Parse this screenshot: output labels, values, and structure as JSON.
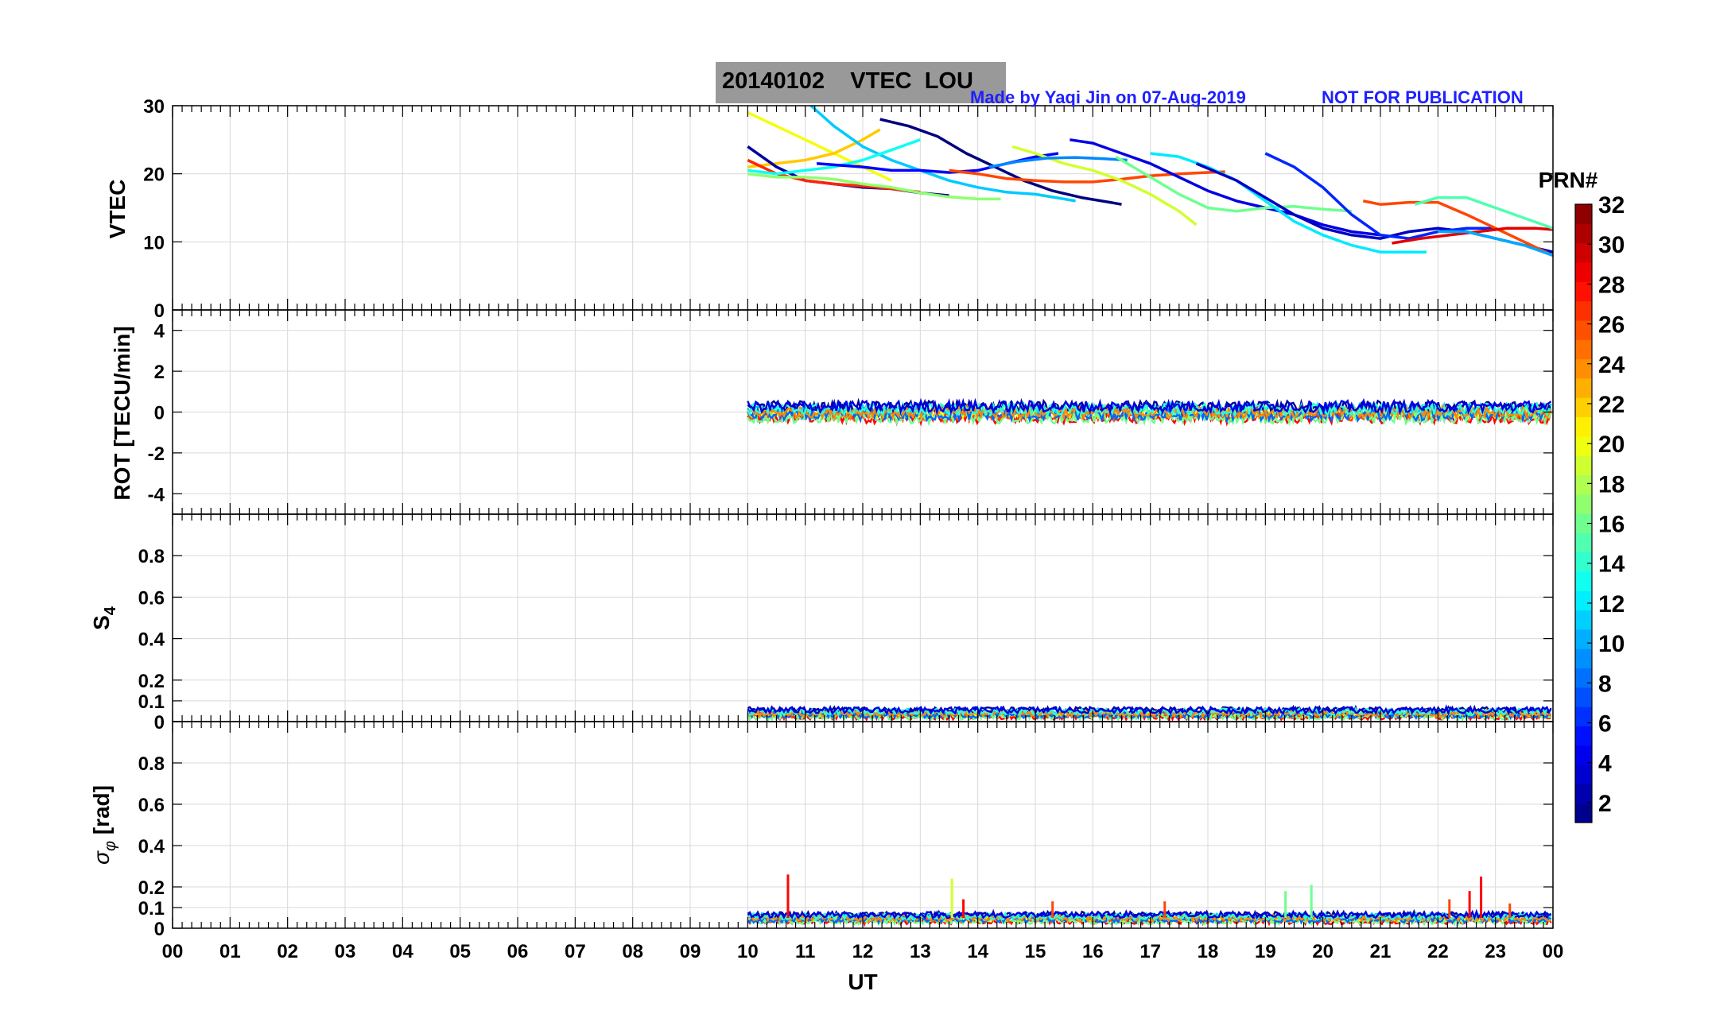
{
  "title": "20140102    VTEC  LOU",
  "credit_left": "Made by Yaqi Jin on 07-Aug-2019",
  "credit_right": "NOT FOR PUBLICATION",
  "xlabel": "UT",
  "x_ticks": [
    "00",
    "01",
    "02",
    "03",
    "04",
    "05",
    "06",
    "07",
    "08",
    "09",
    "10",
    "11",
    "12",
    "13",
    "14",
    "15",
    "16",
    "17",
    "18",
    "19",
    "20",
    "21",
    "22",
    "23",
    "00"
  ],
  "colorbar": {
    "label": "PRN#",
    "range": [
      1,
      32
    ],
    "tick_values": [
      2,
      4,
      6,
      8,
      10,
      12,
      14,
      16,
      18,
      20,
      22,
      24,
      26,
      28,
      30,
      32
    ],
    "tick_labels": [
      "2",
      "4",
      "6",
      "8",
      "10",
      "12",
      "14",
      "16",
      "18",
      "20",
      "22",
      "24",
      "26",
      "28",
      "30",
      "32"
    ]
  },
  "colors": {
    "credit": "#1f1fff",
    "grid": "#d9d9d9",
    "title_bg": "#999999"
  },
  "chart_data": [
    {
      "type": "line",
      "panel": "VTEC",
      "ylabel": "VTEC",
      "xlim": [
        0,
        24
      ],
      "ylim": [
        0,
        30
      ],
      "yticks": [
        0,
        10,
        20,
        30
      ],
      "ytick_labels": [
        "0",
        "10",
        "20",
        "30"
      ],
      "series": [
        {
          "name": "PRN 20",
          "prn": 20,
          "x": [
            10.0,
            10.5,
            11.0,
            11.5,
            12.0,
            12.5
          ],
          "y": [
            29,
            27,
            25,
            23,
            21,
            19
          ]
        },
        {
          "name": "PRN 22",
          "prn": 22,
          "x": [
            10.0,
            10.5,
            11.0,
            11.5,
            12.0,
            12.3
          ],
          "y": [
            21,
            21.5,
            22,
            23,
            25,
            26.5
          ]
        },
        {
          "name": "PRN 2",
          "prn": 2,
          "x": [
            10.0,
            10.5,
            11.0,
            11.5,
            12.0,
            12.5,
            13.0,
            13.5
          ],
          "y": [
            24,
            21,
            19,
            18.5,
            18,
            17.8,
            17.2,
            16.8
          ]
        },
        {
          "name": "PRN 27",
          "prn": 27,
          "x": [
            10.0,
            10.5,
            11.0,
            11.5,
            12.0,
            12.5,
            13.0
          ],
          "y": [
            22,
            20,
            19,
            18.5,
            18.2,
            17.8,
            17.3
          ]
        },
        {
          "name": "PRN 11",
          "prn": 11,
          "x": [
            11.1,
            11.5,
            12.0,
            12.5,
            13.0,
            13.5,
            14.0,
            14.5,
            15.0,
            15.5,
            15.7
          ],
          "y": [
            30,
            27,
            24,
            22,
            20.5,
            19,
            18,
            17.3,
            17,
            16.3,
            16
          ]
        },
        {
          "name": "PRN 13",
          "prn": 13,
          "x": [
            10.0,
            10.5,
            11.0,
            11.5,
            12.0,
            12.5,
            13.0
          ],
          "y": [
            20.5,
            20,
            20.5,
            21,
            22,
            23.5,
            25
          ]
        },
        {
          "name": "PRN 17",
          "prn": 17,
          "x": [
            10.0,
            10.5,
            11.0,
            11.5,
            12.0,
            12.5,
            13.0,
            13.5,
            14.0,
            14.4
          ],
          "y": [
            20,
            19.5,
            19.5,
            19.2,
            18.5,
            18,
            17.2,
            16.6,
            16.3,
            16.3
          ]
        },
        {
          "name": "PRN 5",
          "prn": 5,
          "x": [
            11.2,
            12.0,
            12.5,
            13.0,
            13.5,
            14.0,
            14.5,
            15.0,
            15.4
          ],
          "y": [
            21.5,
            21,
            20.5,
            20.5,
            20.2,
            20.5,
            21.5,
            22.5,
            23
          ]
        },
        {
          "name": "PRN 1",
          "prn": 1,
          "x": [
            12.3,
            12.8,
            13.3,
            13.8,
            14.3,
            14.8,
            15.3,
            15.8,
            16.3,
            16.5
          ],
          "y": [
            28,
            27,
            25.5,
            23,
            21,
            19,
            17.5,
            16.5,
            15.8,
            15.5
          ]
        },
        {
          "name": "PRN 26",
          "prn": 26,
          "x": [
            13.5,
            14.0,
            14.5,
            15.0,
            15.5,
            16.0,
            16.5,
            17.0,
            17.5,
            18.0,
            18.3
          ],
          "y": [
            20.5,
            20,
            19.3,
            19,
            18.8,
            18.8,
            19.2,
            19.7,
            20,
            20.2,
            20.3
          ]
        },
        {
          "name": "PRN 19",
          "prn": 19,
          "x": [
            14.6,
            15.0,
            15.5,
            16.0,
            16.5,
            17.0,
            17.5,
            17.8
          ],
          "y": [
            24,
            23,
            21.5,
            20.5,
            19,
            17,
            14.5,
            12.5
          ]
        },
        {
          "name": "PRN 9",
          "prn": 9,
          "x": [
            14.2,
            14.7,
            15.2,
            15.7,
            16.2,
            16.6
          ],
          "y": [
            21,
            21.8,
            22.3,
            22.4,
            22.2,
            22
          ]
        },
        {
          "name": "PRN 4",
          "prn": 4,
          "x": [
            15.6,
            16.0,
            16.5,
            17.0,
            17.5,
            18.0,
            18.5,
            19.0,
            19.5,
            20.0,
            20.5,
            21.0
          ],
          "y": [
            25,
            24.5,
            23,
            21.5,
            19.5,
            17.5,
            16,
            15,
            14,
            12.5,
            11.5,
            11
          ]
        },
        {
          "name": "PRN 16",
          "prn": 16,
          "x": [
            16.4,
            17.0,
            17.5,
            18.0,
            18.5,
            19.0,
            19.5,
            20.0,
            20.5
          ],
          "y": [
            22.5,
            19.5,
            17,
            15,
            14.5,
            15,
            15.2,
            14.8,
            14.5
          ]
        },
        {
          "name": "PRN 12",
          "prn": 12,
          "x": [
            17.0,
            17.5,
            18.0,
            18.5,
            19.0,
            19.5,
            20.0,
            20.5,
            21.0,
            21.5,
            21.8
          ],
          "y": [
            23,
            22.5,
            21,
            19,
            16,
            13,
            11,
            9.5,
            8.5,
            8.5,
            8.5
          ]
        },
        {
          "name": "PRN 3",
          "prn": 3,
          "x": [
            17.8,
            18.5,
            19.0,
            19.5,
            20.0,
            20.5,
            21.0,
            21.5,
            22.0,
            22.5,
            23.0,
            23.5,
            24.0
          ],
          "y": [
            21.5,
            19,
            16.5,
            14,
            12,
            11,
            10.5,
            11.5,
            12,
            11.5,
            10.5,
            9.5,
            8.5
          ]
        },
        {
          "name": "PRN 6",
          "prn": 6,
          "x": [
            19.0,
            19.5,
            20.0,
            20.5,
            21.0,
            21.5,
            22.0,
            22.5,
            23.0
          ],
          "y": [
            23,
            21,
            18,
            14,
            11,
            10.5,
            11.5,
            12,
            12
          ]
        },
        {
          "name": "PRN 26b",
          "prn": 26,
          "x": [
            20.7,
            21.0,
            21.5,
            22.0,
            22.5,
            23.0,
            23.5,
            24.0
          ],
          "y": [
            16,
            15.5,
            15.8,
            15.8,
            14,
            12,
            10,
            8
          ]
        },
        {
          "name": "PRN 29",
          "prn": 29,
          "x": [
            21.2,
            21.7,
            22.2,
            22.7,
            23.2,
            23.7,
            24.0
          ],
          "y": [
            9.8,
            10.5,
            11,
            11.5,
            12,
            12,
            11.8
          ]
        },
        {
          "name": "PRN 15",
          "prn": 15,
          "x": [
            21.6,
            22.0,
            22.5,
            23.0,
            23.5,
            24.0
          ],
          "y": [
            15.5,
            16.5,
            16.5,
            15,
            13.5,
            12
          ]
        },
        {
          "name": "PRN 10",
          "prn": 10,
          "x": [
            22.0,
            22.5,
            23.0,
            23.5,
            24.0
          ],
          "y": [
            11.5,
            11.5,
            10.5,
            9.5,
            8
          ]
        }
      ]
    },
    {
      "type": "line",
      "panel": "ROT",
      "ylabel": "ROT [TECU/min]",
      "xlim": [
        0,
        24
      ],
      "ylim": [
        -5,
        5
      ],
      "yticks": [
        -4,
        -2,
        0,
        2,
        4
      ],
      "ytick_labels": [
        "-4",
        "-2",
        "0",
        "2",
        "4"
      ],
      "data_range": [
        10.0,
        24.0
      ],
      "typical_values": [
        -0.6,
        0.7
      ],
      "base_value": 0
    },
    {
      "type": "line",
      "panel": "S4",
      "ylabel": "S4",
      "xlim": [
        0,
        24
      ],
      "ylim": [
        0,
        1
      ],
      "yticks": [
        0,
        0.1,
        0.2,
        0.4,
        0.6,
        0.8
      ],
      "ytick_labels": [
        "0",
        "0.1",
        "0.2",
        "0.4",
        "0.6",
        "0.8"
      ],
      "data_range": [
        10.0,
        24.0
      ],
      "base_value": 0.04,
      "typical_max": 0.1
    },
    {
      "type": "line",
      "panel": "SigmaPhi",
      "ylabel": "σφ [rad]",
      "xlim": [
        0,
        24
      ],
      "ylim": [
        0,
        1
      ],
      "yticks": [
        0,
        0.1,
        0.2,
        0.4,
        0.6,
        0.8
      ],
      "ytick_labels": [
        "0",
        "0.1",
        "0.2",
        "0.4",
        "0.6",
        "0.8"
      ],
      "data_range": [
        10.0,
        24.0
      ],
      "base_value": 0.05,
      "spikes": [
        {
          "x": 10.7,
          "y": 0.26,
          "prn": 28
        },
        {
          "x": 13.55,
          "y": 0.24,
          "prn": 19
        },
        {
          "x": 13.75,
          "y": 0.14,
          "prn": 28
        },
        {
          "x": 15.3,
          "y": 0.13,
          "prn": 26
        },
        {
          "x": 17.25,
          "y": 0.13,
          "prn": 26
        },
        {
          "x": 19.35,
          "y": 0.18,
          "prn": 16
        },
        {
          "x": 19.8,
          "y": 0.21,
          "prn": 16
        },
        {
          "x": 22.2,
          "y": 0.14,
          "prn": 26
        },
        {
          "x": 22.55,
          "y": 0.18,
          "prn": 28
        },
        {
          "x": 22.75,
          "y": 0.25,
          "prn": 28
        },
        {
          "x": 23.25,
          "y": 0.12,
          "prn": 26
        }
      ]
    }
  ]
}
